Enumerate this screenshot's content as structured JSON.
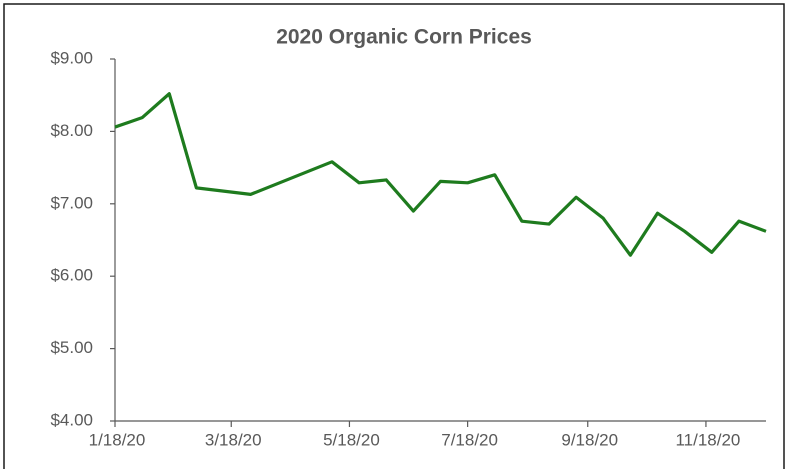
{
  "chart_data": {
    "type": "line",
    "title": "2020 Organic Corn Prices",
    "x": [
      "1/18/20",
      "2/1/20",
      "2/15/20",
      "2/29/20",
      "3/28/20",
      "5/9/20",
      "5/23/20",
      "6/6/20",
      "6/20/20",
      "7/4/20",
      "7/18/20",
      "8/1/20",
      "8/15/20",
      "8/29/20",
      "9/12/20",
      "9/26/20",
      "10/10/20",
      "10/24/20",
      "11/7/20",
      "11/21/20",
      "12/5/20",
      "12/19/20"
    ],
    "series": [
      {
        "name": "Organic Corn",
        "color": "#1e7b1e",
        "values": [
          8.06,
          8.19,
          8.52,
          7.22,
          7.13,
          7.58,
          7.29,
          7.33,
          6.9,
          7.31,
          7.29,
          7.4,
          6.76,
          6.72,
          7.09,
          6.8,
          6.29,
          6.87,
          6.62,
          6.33,
          6.76,
          6.62
        ]
      }
    ],
    "xlim": [
      "1/18/20",
      "12/19/20"
    ],
    "xticks": [
      "1/18/20",
      "3/18/20",
      "5/18/20",
      "7/18/20",
      "9/18/20",
      "11/18/20"
    ],
    "ylim": [
      4,
      9
    ],
    "yticks": [
      {
        "value": 4,
        "label": "$4.00"
      },
      {
        "value": 5,
        "label": "$5.00"
      },
      {
        "value": 6,
        "label": "$6.00"
      },
      {
        "value": 7,
        "label": "$7.00"
      },
      {
        "value": 8,
        "label": "$8.00"
      },
      {
        "value": 9,
        "label": "$9.00"
      }
    ],
    "grid": false
  }
}
